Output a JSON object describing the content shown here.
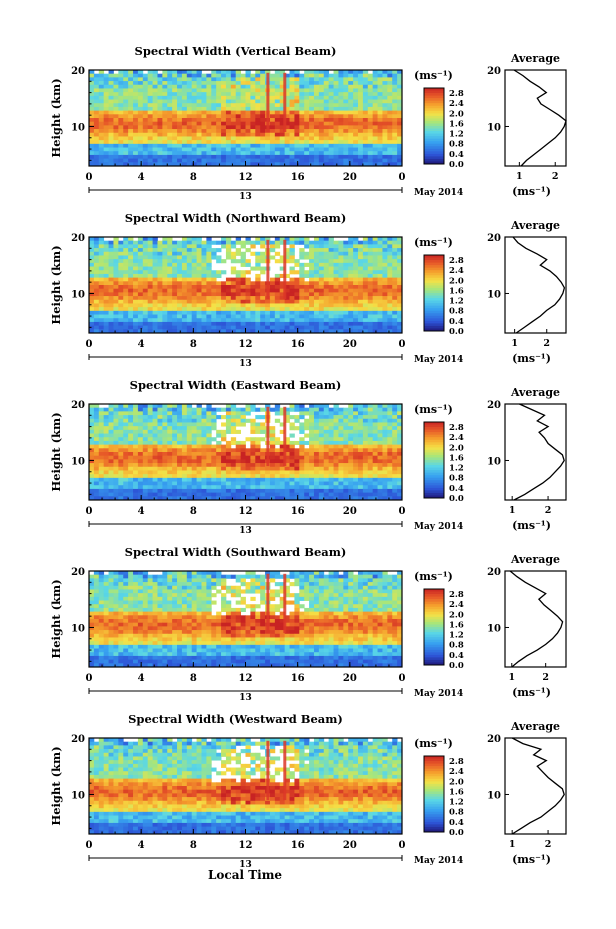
{
  "figure": {
    "x_axis_title": "Local Time",
    "date_label": "May 2014",
    "day_label": "13",
    "height_axis_label": "Height (km)",
    "colorbar_unit": "(ms⁻¹)",
    "average_title": "Average",
    "average_unit": "(ms⁻¹)"
  },
  "chart_data": [
    {
      "type": "heatmap",
      "title": "Spectral Width (Vertical Beam)",
      "xlabel": "",
      "ylabel": "Height (km)",
      "xlim": [
        0,
        24
      ],
      "ylim": [
        3,
        20
      ],
      "x_ticks": [
        "0",
        "4",
        "8",
        "12",
        "16",
        "20",
        "0"
      ],
      "y_ticks": [
        "10",
        "20"
      ],
      "colorbar": {
        "label": "(ms⁻¹)",
        "range": [
          0.0,
          3.0
        ],
        "ticks": [
          "0.0",
          "0.4",
          "0.8",
          "1.2",
          "1.6",
          "2.0",
          "2.4",
          "2.8"
        ]
      },
      "average_profile": {
        "title": "Average",
        "xlabel": "(ms⁻¹)",
        "x_ticks": [
          "1",
          "2"
        ],
        "y_ticks": [
          "10",
          "20"
        ],
        "xlim": [
          0.6,
          2.3
        ],
        "height_km": [
          3,
          4,
          5,
          6,
          7,
          8,
          9,
          10,
          11,
          12,
          13,
          14,
          15,
          16,
          17,
          18,
          19,
          20
        ],
        "width_ms": [
          1.05,
          1.2,
          1.4,
          1.6,
          1.8,
          2.0,
          2.15,
          2.25,
          2.3,
          2.1,
          1.85,
          1.6,
          1.5,
          1.75,
          1.55,
          1.3,
          1.1,
          0.85
        ]
      }
    },
    {
      "type": "heatmap",
      "title": "Spectral Width (Northward Beam)",
      "xlabel": "",
      "ylabel": "Height (km)",
      "xlim": [
        0,
        24
      ],
      "ylim": [
        3,
        20
      ],
      "x_ticks": [
        "0",
        "4",
        "8",
        "12",
        "16",
        "20",
        "0"
      ],
      "y_ticks": [
        "10",
        "20"
      ],
      "colorbar": {
        "label": "(ms⁻¹)",
        "range": [
          0.0,
          3.0
        ],
        "ticks": [
          "0.0",
          "0.4",
          "0.8",
          "1.2",
          "1.6",
          "2.0",
          "2.4",
          "2.8"
        ]
      },
      "average_profile": {
        "title": "Average",
        "xlabel": "(ms⁻¹)",
        "x_ticks": [
          "1",
          "2"
        ],
        "y_ticks": [
          "10",
          "20"
        ],
        "xlim": [
          0.7,
          2.6
        ],
        "height_km": [
          3,
          4,
          5,
          6,
          7,
          8,
          9,
          10,
          11,
          12,
          13,
          14,
          15,
          16,
          17,
          18,
          19,
          20
        ],
        "width_ms": [
          1.05,
          1.3,
          1.55,
          1.8,
          2.0,
          2.25,
          2.4,
          2.5,
          2.55,
          2.45,
          2.3,
          2.1,
          1.8,
          2.0,
          1.7,
          1.35,
          1.1,
          0.95
        ]
      }
    },
    {
      "type": "heatmap",
      "title": "Spectral Width (Eastward Beam)",
      "xlabel": "",
      "ylabel": "Height (km)",
      "xlim": [
        0,
        24
      ],
      "ylim": [
        3,
        20
      ],
      "x_ticks": [
        "0",
        "4",
        "8",
        "12",
        "16",
        "20",
        "0"
      ],
      "y_ticks": [
        "10",
        "20"
      ],
      "colorbar": {
        "label": "(ms⁻¹)",
        "range": [
          0.0,
          3.0
        ],
        "ticks": [
          "0.0",
          "0.4",
          "0.8",
          "1.2",
          "1.6",
          "2.0",
          "2.4",
          "2.8"
        ]
      },
      "average_profile": {
        "title": "Average",
        "xlabel": "(ms⁻¹)",
        "x_ticks": [
          "1",
          "2"
        ],
        "y_ticks": [
          "10",
          "20"
        ],
        "xlim": [
          0.8,
          2.5
        ],
        "height_km": [
          3,
          4,
          5,
          6,
          7,
          8,
          9,
          10,
          11,
          12,
          13,
          14,
          15,
          16,
          17,
          18,
          19,
          20
        ],
        "width_ms": [
          1.05,
          1.35,
          1.6,
          1.85,
          2.05,
          2.2,
          2.35,
          2.45,
          2.4,
          2.2,
          2.0,
          1.9,
          1.75,
          2.0,
          1.7,
          1.9,
          1.55,
          1.2
        ]
      }
    },
    {
      "type": "heatmap",
      "title": "Spectral Width (Southward Beam)",
      "xlabel": "",
      "ylabel": "Height (km)",
      "xlim": [
        0,
        24
      ],
      "ylim": [
        3,
        20
      ],
      "x_ticks": [
        "0",
        "4",
        "8",
        "12",
        "16",
        "20",
        "0"
      ],
      "y_ticks": [
        "10",
        "20"
      ],
      "colorbar": {
        "label": "(ms⁻¹)",
        "range": [
          0.0,
          3.0
        ],
        "ticks": [
          "0.0",
          "0.4",
          "0.8",
          "1.2",
          "1.6",
          "2.0",
          "2.4",
          "2.8"
        ]
      },
      "average_profile": {
        "title": "Average",
        "xlabel": "(ms⁻¹)",
        "x_ticks": [
          "1",
          "2"
        ],
        "y_ticks": [
          "10",
          "20"
        ],
        "xlim": [
          0.8,
          2.6
        ],
        "height_km": [
          3,
          4,
          5,
          6,
          7,
          8,
          9,
          10,
          11,
          12,
          13,
          14,
          15,
          16,
          17,
          18,
          19,
          20
        ],
        "width_ms": [
          1.0,
          1.2,
          1.45,
          1.75,
          2.0,
          2.2,
          2.35,
          2.45,
          2.5,
          2.35,
          2.15,
          1.95,
          1.8,
          2.0,
          1.7,
          1.4,
          1.15,
          0.95
        ]
      }
    },
    {
      "type": "heatmap",
      "title": "Spectral Width (Westward Beam)",
      "xlabel": "Local Time",
      "ylabel": "Height (km)",
      "xlim": [
        0,
        24
      ],
      "ylim": [
        3,
        20
      ],
      "x_ticks": [
        "0",
        "4",
        "8",
        "12",
        "16",
        "20",
        "0"
      ],
      "y_ticks": [
        "10",
        "20"
      ],
      "colorbar": {
        "label": "(ms⁻¹)",
        "range": [
          0.0,
          3.0
        ],
        "ticks": [
          "0.0",
          "0.4",
          "0.8",
          "1.2",
          "1.6",
          "2.0",
          "2.4",
          "2.8"
        ]
      },
      "average_profile": {
        "title": "Average",
        "xlabel": "(ms⁻¹)",
        "x_ticks": [
          "1",
          "2"
        ],
        "y_ticks": [
          "10",
          "20"
        ],
        "xlim": [
          0.8,
          2.5
        ],
        "height_km": [
          3,
          4,
          5,
          6,
          7,
          8,
          9,
          10,
          11,
          12,
          13,
          14,
          15,
          16,
          17,
          18,
          19,
          20
        ],
        "width_ms": [
          1.0,
          1.25,
          1.5,
          1.8,
          2.0,
          2.2,
          2.35,
          2.45,
          2.4,
          2.2,
          2.0,
          1.85,
          1.7,
          1.95,
          1.6,
          1.8,
          1.3,
          1.0
        ]
      }
    }
  ]
}
